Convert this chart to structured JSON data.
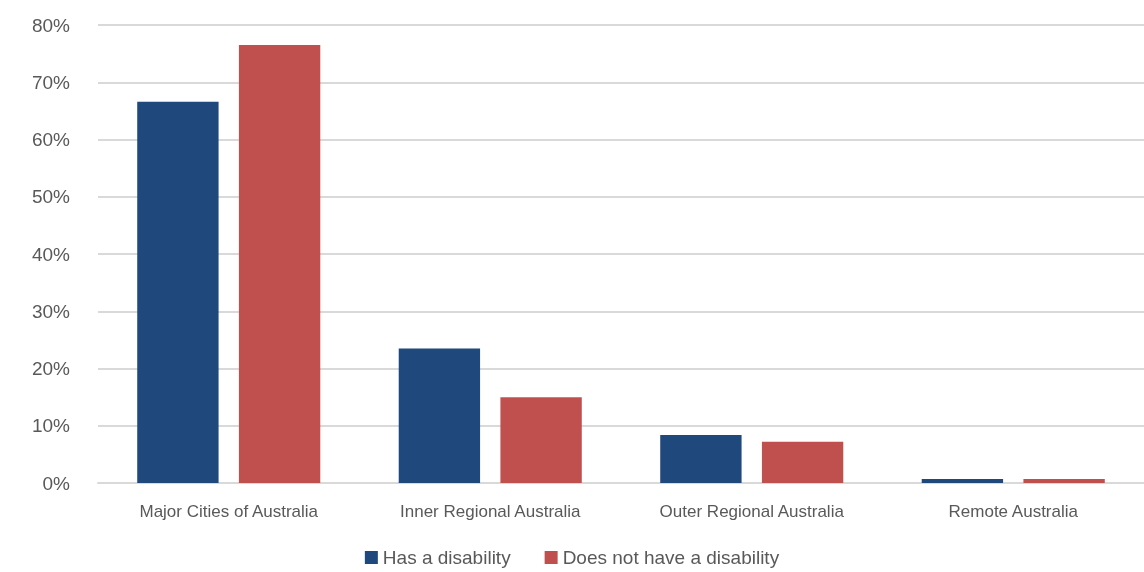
{
  "chart_data": {
    "type": "bar",
    "categories": [
      "Major Cities of Australia",
      "Inner Regional Australia",
      "Outer Regional Australia",
      "Remote Australia"
    ],
    "series": [
      {
        "name": "Has a disability",
        "color": "#1f497d",
        "values": [
          66.6,
          23.5,
          8.4,
          0.7
        ]
      },
      {
        "name": "Does not have a disability",
        "color": "#c0504d",
        "values": [
          76.5,
          15.0,
          7.2,
          0.7
        ]
      }
    ],
    "ylim": [
      0,
      80
    ],
    "yticks": [
      {
        "value": 0,
        "label": "0%"
      },
      {
        "value": 10,
        "label": "10%"
      },
      {
        "value": 20,
        "label": "20%"
      },
      {
        "value": 30,
        "label": "30%"
      },
      {
        "value": 40,
        "label": "40%"
      },
      {
        "value": 50,
        "label": "50%"
      },
      {
        "value": 60,
        "label": "60%"
      },
      {
        "value": 70,
        "label": "70%"
      },
      {
        "value": 80,
        "label": "80%"
      }
    ],
    "grid": true,
    "legend": "bottom"
  }
}
